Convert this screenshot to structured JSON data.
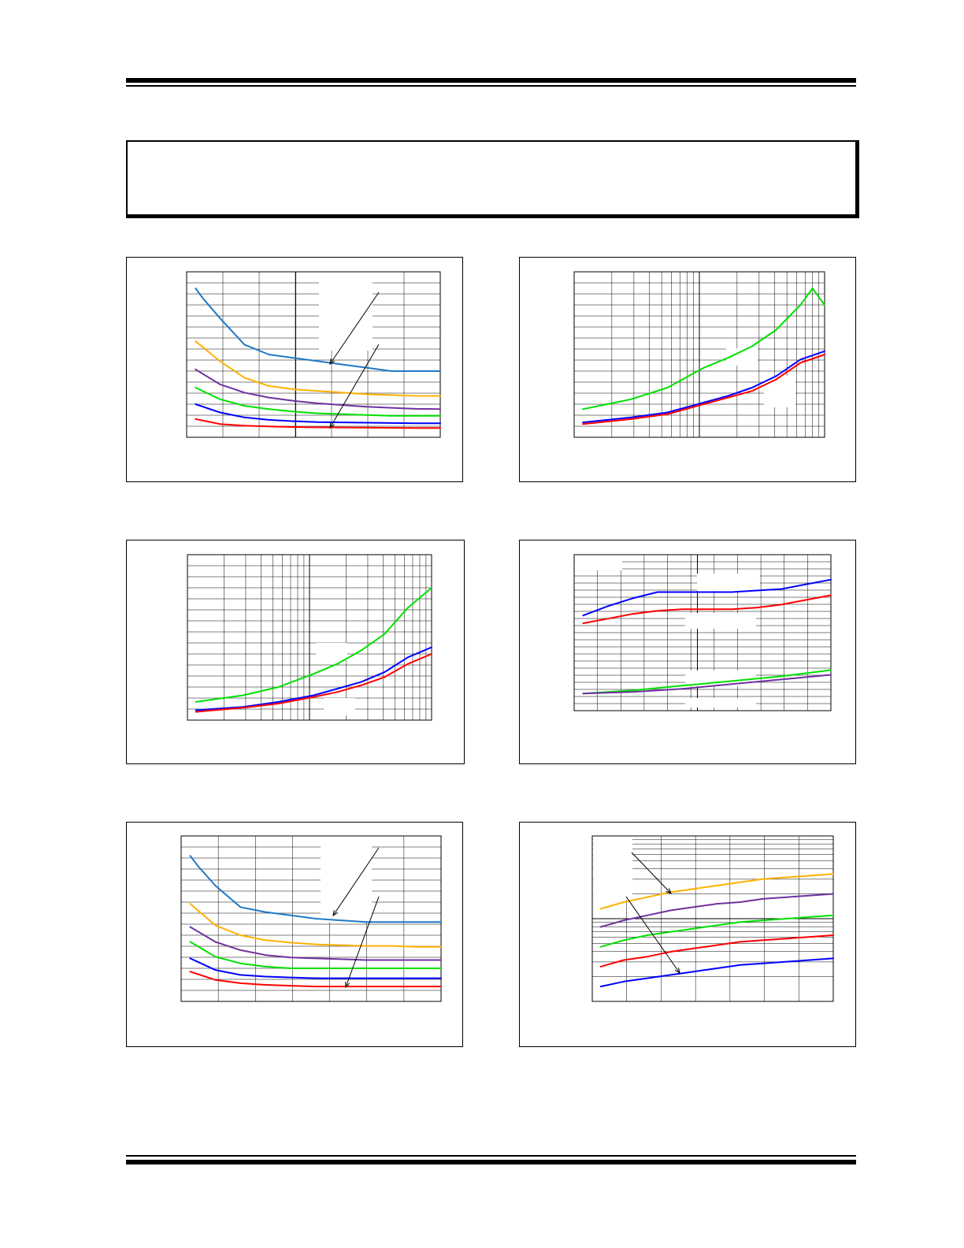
{
  "colors": {
    "blue_light": "#1f78c8",
    "orange": "#ffb000",
    "purple": "#7030a0",
    "green": "#00e000",
    "blue": "#0000ff",
    "red": "#ff0000"
  },
  "header": {},
  "note": {},
  "figures": [
    {
      "id": "fig-1",
      "chart_data": {
        "type": "line",
        "x_scale": "linear",
        "y_scale": "linear",
        "grid": true,
        "series": [
          {
            "color": "#1f78c8",
            "x": [
              0.0,
              0.03,
              0.1,
              0.2,
              0.3,
              0.4,
              0.5,
              0.6,
              0.7,
              0.8,
              0.9,
              1.0
            ],
            "y": [
              0.9,
              0.84,
              0.72,
              0.56,
              0.5,
              0.48,
              0.46,
              0.44,
              0.42,
              0.4,
              0.4,
              0.4
            ]
          },
          {
            "color": "#ffb000",
            "x": [
              0.0,
              0.1,
              0.2,
              0.3,
              0.4,
              0.5,
              0.6,
              0.7,
              0.8,
              0.9,
              1.0
            ],
            "y": [
              0.58,
              0.46,
              0.36,
              0.31,
              0.29,
              0.28,
              0.27,
              0.26,
              0.255,
              0.25,
              0.25
            ]
          },
          {
            "color": "#7030a0",
            "x": [
              0.0,
              0.1,
              0.2,
              0.3,
              0.4,
              0.5,
              0.6,
              0.7,
              0.8,
              0.9,
              1.0
            ],
            "y": [
              0.41,
              0.32,
              0.27,
              0.24,
              0.22,
              0.205,
              0.195,
              0.185,
              0.178,
              0.172,
              0.17
            ]
          },
          {
            "color": "#00e000",
            "x": [
              0.0,
              0.1,
              0.2,
              0.3,
              0.4,
              0.5,
              0.6,
              0.7,
              0.8,
              0.9,
              1.0
            ],
            "y": [
              0.3,
              0.23,
              0.19,
              0.17,
              0.155,
              0.145,
              0.14,
              0.135,
              0.13,
              0.13,
              0.13
            ]
          },
          {
            "color": "#0000ff",
            "x": [
              0.0,
              0.1,
              0.2,
              0.3,
              0.4,
              0.5,
              0.6,
              0.7,
              0.8,
              0.9,
              1.0
            ],
            "y": [
              0.2,
              0.15,
              0.12,
              0.105,
              0.097,
              0.092,
              0.09,
              0.088,
              0.086,
              0.085,
              0.085
            ]
          },
          {
            "color": "#ff0000",
            "x": [
              0.0,
              0.1,
              0.2,
              0.3,
              0.4,
              0.5,
              0.6,
              0.7,
              0.8,
              0.9,
              1.0
            ],
            "y": [
              0.11,
              0.08,
              0.07,
              0.065,
              0.062,
              0.06,
              0.059,
              0.058,
              0.057,
              0.056,
              0.056
            ]
          }
        ]
      }
    },
    {
      "id": "fig-2",
      "chart_data": {
        "type": "line",
        "x_scale": "log",
        "y_scale": "linear",
        "grid": true,
        "series": [
          {
            "color": "#00e000",
            "x": [
              0.0,
              0.2,
              0.35,
              0.5,
              0.6,
              0.7,
              0.8,
              0.9,
              0.95,
              1.0
            ],
            "y": [
              0.17,
              0.23,
              0.3,
              0.42,
              0.48,
              0.55,
              0.65,
              0.8,
              0.9,
              0.8
            ]
          },
          {
            "color": "#0000ff",
            "x": [
              0.0,
              0.2,
              0.35,
              0.5,
              0.6,
              0.7,
              0.8,
              0.9,
              1.0
            ],
            "y": [
              0.09,
              0.12,
              0.15,
              0.21,
              0.25,
              0.3,
              0.37,
              0.47,
              0.52
            ]
          },
          {
            "color": "#ff0000",
            "x": [
              0.0,
              0.2,
              0.35,
              0.5,
              0.6,
              0.7,
              0.8,
              0.9,
              1.0
            ],
            "y": [
              0.08,
              0.11,
              0.14,
              0.2,
              0.24,
              0.28,
              0.35,
              0.45,
              0.5
            ]
          }
        ]
      }
    },
    {
      "id": "fig-3",
      "chart_data": {
        "type": "line",
        "x_scale": "log",
        "y_scale": "linear",
        "grid": true,
        "series": [
          {
            "color": "#00e000",
            "x": [
              0.0,
              0.2,
              0.35,
              0.5,
              0.6,
              0.7,
              0.8,
              0.9,
              1.0
            ],
            "y": [
              0.11,
              0.15,
              0.2,
              0.28,
              0.34,
              0.42,
              0.52,
              0.68,
              0.8
            ]
          },
          {
            "color": "#0000ff",
            "x": [
              0.0,
              0.2,
              0.35,
              0.5,
              0.6,
              0.7,
              0.8,
              0.9,
              1.0
            ],
            "y": [
              0.06,
              0.08,
              0.11,
              0.15,
              0.19,
              0.23,
              0.29,
              0.38,
              0.44
            ]
          },
          {
            "color": "#ff0000",
            "x": [
              0.0,
              0.2,
              0.35,
              0.5,
              0.6,
              0.7,
              0.8,
              0.9,
              1.0
            ],
            "y": [
              0.05,
              0.075,
              0.1,
              0.14,
              0.17,
              0.21,
              0.26,
              0.34,
              0.4
            ]
          }
        ]
      }
    },
    {
      "id": "fig-4",
      "chart_data": {
        "type": "line",
        "x_scale": "linear",
        "y_scale": "linear",
        "grid": true,
        "series": [
          {
            "color": "#0000ff",
            "x": [
              0.0,
              0.1,
              0.2,
              0.3,
              0.4,
              0.5,
              0.6,
              0.7,
              0.8,
              0.9,
              1.0
            ],
            "y": [
              0.61,
              0.67,
              0.72,
              0.76,
              0.76,
              0.76,
              0.76,
              0.77,
              0.78,
              0.81,
              0.84
            ]
          },
          {
            "color": "#ff0000",
            "x": [
              0.0,
              0.1,
              0.2,
              0.3,
              0.4,
              0.5,
              0.6,
              0.7,
              0.8,
              0.9,
              1.0
            ],
            "y": [
              0.56,
              0.59,
              0.62,
              0.64,
              0.65,
              0.65,
              0.65,
              0.66,
              0.68,
              0.71,
              0.74
            ]
          },
          {
            "color": "#00e000",
            "x": [
              0.0,
              0.2,
              0.4,
              0.6,
              0.8,
              1.0
            ],
            "y": [
              0.11,
              0.13,
              0.16,
              0.19,
              0.22,
              0.26
            ]
          },
          {
            "color": "#7030a0",
            "x": [
              0.0,
              0.2,
              0.4,
              0.6,
              0.8,
              1.0
            ],
            "y": [
              0.11,
              0.12,
              0.14,
              0.17,
              0.2,
              0.23
            ]
          }
        ]
      }
    },
    {
      "id": "fig-5",
      "chart_data": {
        "type": "line",
        "x_scale": "linear",
        "y_scale": "linear",
        "grid": true,
        "series": [
          {
            "color": "#1f78c8",
            "x": [
              0.0,
              0.03,
              0.1,
              0.2,
              0.3,
              0.4,
              0.5,
              0.6,
              0.7,
              0.8,
              0.9,
              1.0
            ],
            "y": [
              0.88,
              0.82,
              0.7,
              0.57,
              0.54,
              0.52,
              0.5,
              0.49,
              0.48,
              0.48,
              0.48,
              0.48
            ]
          },
          {
            "color": "#ffb000",
            "x": [
              0.0,
              0.1,
              0.2,
              0.3,
              0.4,
              0.5,
              0.6,
              0.7,
              0.8,
              0.9,
              1.0
            ],
            "y": [
              0.59,
              0.46,
              0.4,
              0.37,
              0.355,
              0.345,
              0.34,
              0.335,
              0.335,
              0.33,
              0.33
            ]
          },
          {
            "color": "#7030a0",
            "x": [
              0.0,
              0.1,
              0.2,
              0.3,
              0.4,
              0.5,
              0.6,
              0.7,
              0.8,
              0.9,
              1.0
            ],
            "y": [
              0.45,
              0.36,
              0.31,
              0.28,
              0.265,
              0.26,
              0.255,
              0.25,
              0.25,
              0.25,
              0.25
            ]
          },
          {
            "color": "#00e000",
            "x": [
              0.0,
              0.1,
              0.2,
              0.3,
              0.4,
              0.5,
              0.6,
              0.7,
              0.8,
              0.9,
              1.0
            ],
            "y": [
              0.36,
              0.27,
              0.23,
              0.21,
              0.2,
              0.2,
              0.2,
              0.2,
              0.2,
              0.2,
              0.2
            ]
          },
          {
            "color": "#0000ff",
            "x": [
              0.0,
              0.1,
              0.2,
              0.3,
              0.4,
              0.5,
              0.6,
              0.7,
              0.8,
              0.9,
              1.0
            ],
            "y": [
              0.26,
              0.19,
              0.16,
              0.15,
              0.145,
              0.14,
              0.14,
              0.14,
              0.14,
              0.14,
              0.14
            ]
          },
          {
            "color": "#ff0000",
            "x": [
              0.0,
              0.1,
              0.2,
              0.3,
              0.4,
              0.5,
              0.6,
              0.7,
              0.8,
              0.9,
              1.0
            ],
            "y": [
              0.18,
              0.13,
              0.11,
              0.1,
              0.095,
              0.09,
              0.09,
              0.09,
              0.09,
              0.09,
              0.09
            ]
          }
        ]
      }
    },
    {
      "id": "fig-6",
      "chart_data": {
        "type": "line",
        "x_scale": "linear",
        "y_scale": "log",
        "grid": true,
        "series": [
          {
            "color": "#ffb000",
            "x": [
              0.0,
              0.1,
              0.2,
              0.3,
              0.4,
              0.5,
              0.6,
              0.7,
              0.8,
              0.9,
              1.0
            ],
            "y": [
              0.56,
              0.6,
              0.63,
              0.66,
              0.68,
              0.7,
              0.72,
              0.74,
              0.75,
              0.76,
              0.77
            ]
          },
          {
            "color": "#7030a0",
            "x": [
              0.0,
              0.1,
              0.2,
              0.3,
              0.4,
              0.5,
              0.6,
              0.7,
              0.8,
              0.9,
              1.0
            ],
            "y": [
              0.45,
              0.49,
              0.52,
              0.55,
              0.57,
              0.59,
              0.6,
              0.62,
              0.63,
              0.64,
              0.65
            ]
          },
          {
            "color": "#00e000",
            "x": [
              0.0,
              0.1,
              0.2,
              0.3,
              0.4,
              0.5,
              0.6,
              0.7,
              0.8,
              0.9,
              1.0
            ],
            "y": [
              0.33,
              0.37,
              0.4,
              0.42,
              0.44,
              0.46,
              0.48,
              0.49,
              0.5,
              0.51,
              0.52
            ]
          },
          {
            "color": "#ff0000",
            "x": [
              0.0,
              0.1,
              0.2,
              0.3,
              0.4,
              0.5,
              0.6,
              0.7,
              0.8,
              0.9,
              1.0
            ],
            "y": [
              0.21,
              0.25,
              0.27,
              0.3,
              0.32,
              0.34,
              0.36,
              0.37,
              0.38,
              0.39,
              0.4
            ]
          },
          {
            "color": "#0000ff",
            "x": [
              0.0,
              0.1,
              0.2,
              0.3,
              0.4,
              0.5,
              0.6,
              0.7,
              0.8,
              0.9,
              1.0
            ],
            "y": [
              0.09,
              0.12,
              0.14,
              0.16,
              0.18,
              0.2,
              0.22,
              0.23,
              0.24,
              0.25,
              0.26
            ]
          }
        ]
      }
    }
  ]
}
